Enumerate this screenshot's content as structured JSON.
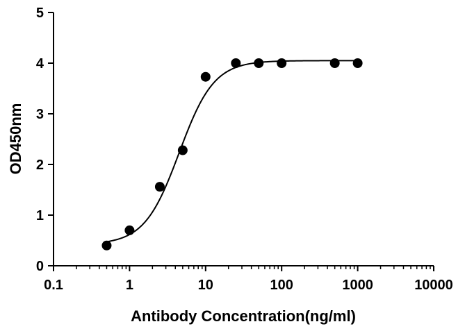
{
  "chart_data": {
    "type": "scatter",
    "title": "",
    "xlabel": "Antibody Concentration(ng/ml)",
    "ylabel": "OD450nm",
    "x_scale": "log",
    "xlim": [
      0.1,
      10000
    ],
    "ylim": [
      0,
      5
    ],
    "x_ticks": [
      0.1,
      1,
      10,
      100,
      1000,
      10000
    ],
    "x_tick_labels": [
      "0.1",
      "1",
      "10",
      "100",
      "1000",
      "10000"
    ],
    "y_ticks": [
      0,
      1,
      2,
      3,
      4,
      5
    ],
    "y_tick_labels": [
      "0",
      "1",
      "2",
      "3",
      "4",
      "5"
    ],
    "grid": false,
    "legend": "none",
    "series": [
      {
        "x": [
          0.5,
          1,
          2.5,
          5,
          10,
          25,
          50,
          100,
          500,
          1000
        ],
        "y": [
          0.4,
          0.7,
          1.56,
          2.28,
          3.73,
          4.0,
          4.0,
          4.0,
          4.0,
          4.0
        ],
        "marker": "filled-circle",
        "fit": "four-parameter-logistic"
      }
    ],
    "fit_curve": {
      "bottom": 0.42,
      "top": 4.05,
      "ec50": 4.5,
      "hill": 1.9,
      "x_range": [
        0.5,
        1000
      ]
    },
    "colors": {
      "marker": "#000000",
      "line": "#000000",
      "axis": "#000000"
    }
  }
}
